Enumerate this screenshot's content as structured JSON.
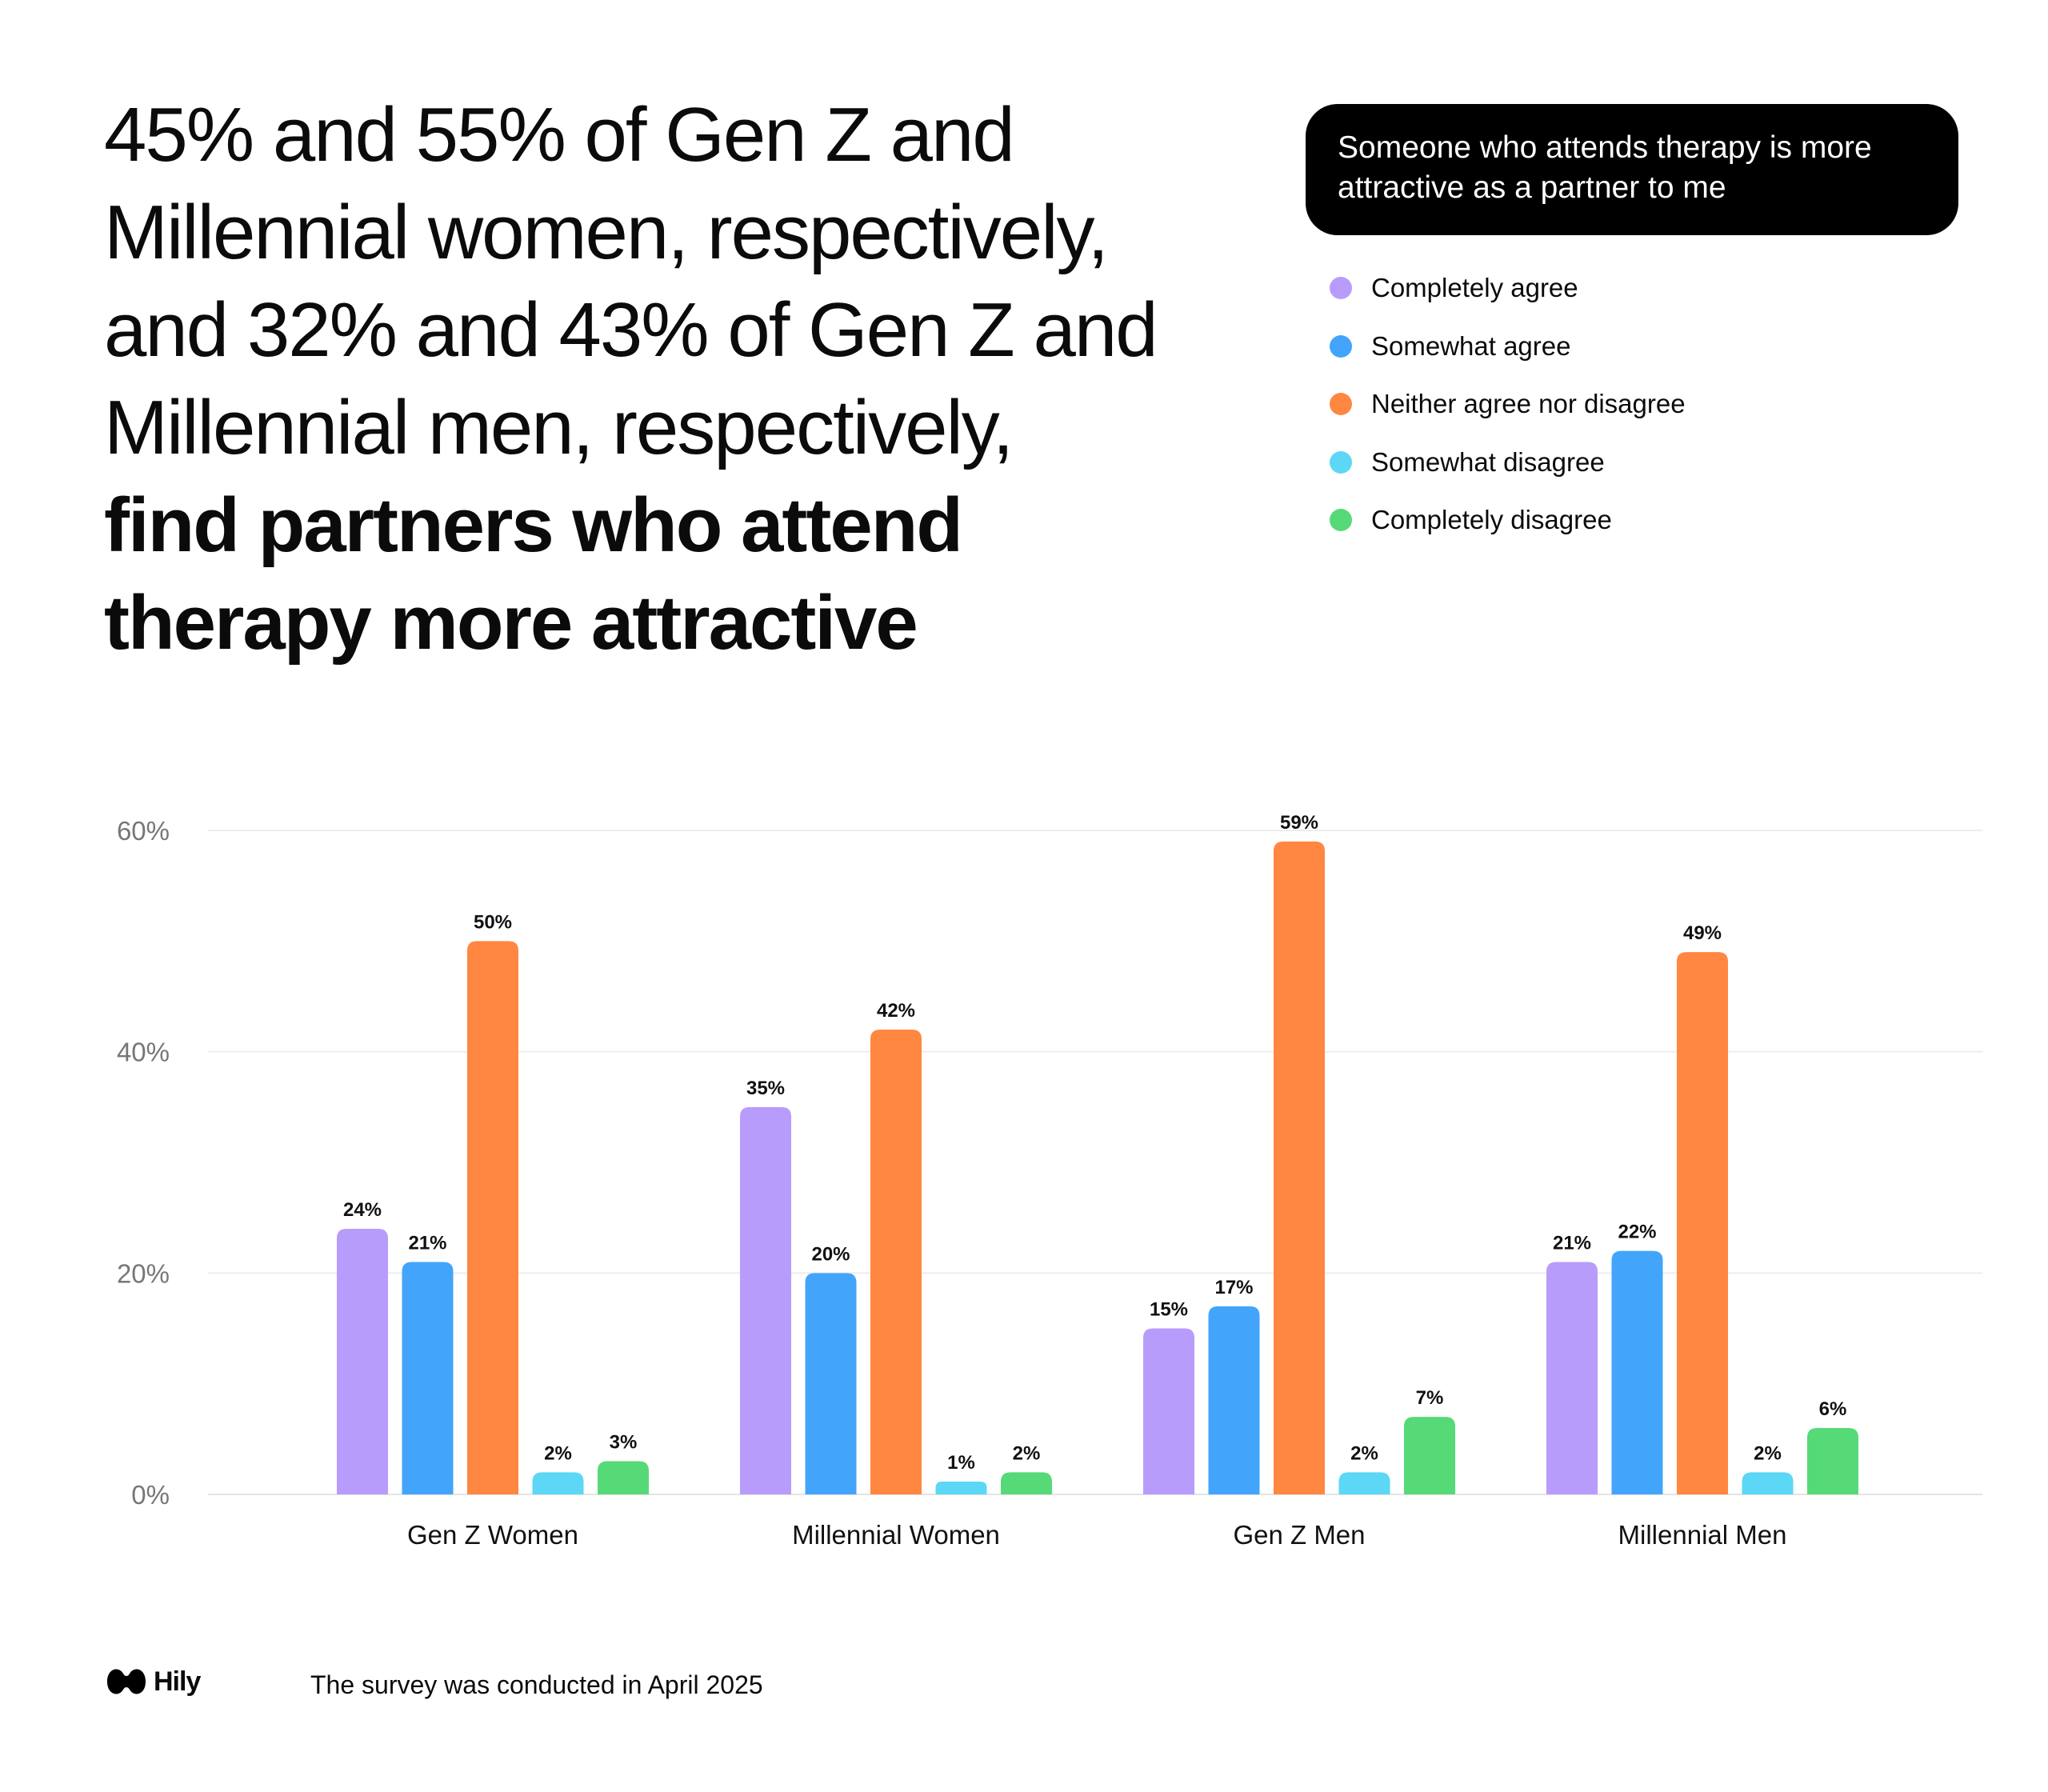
{
  "headline": {
    "regular": "45% and 55% of Gen Z and Millennial women, respectively, and 32% and 43% of Gen Z and Millennial men, respectively,",
    "bold": "find partners who attend therapy more attractive"
  },
  "chart_data": {
    "type": "bar",
    "title": "Someone who attends therapy is more attractive as a partner to me",
    "categories": [
      "Gen Z Women",
      "Millennial Women",
      "Gen Z Men",
      "Millennial Men"
    ],
    "series": [
      {
        "name": "Completely agree",
        "color": "#b89cfb",
        "values": [
          24,
          35,
          15,
          21
        ]
      },
      {
        "name": "Somewhat agree",
        "color": "#42a5fb",
        "values": [
          21,
          20,
          17,
          22
        ]
      },
      {
        "name": "Neither agree nor disagree",
        "color": "#ff8741",
        "values": [
          50,
          42,
          59,
          49
        ]
      },
      {
        "name": "Somewhat disagree",
        "color": "#5cd7f6",
        "values": [
          2,
          1,
          2,
          2
        ]
      },
      {
        "name": "Completely disagree",
        "color": "#56d977",
        "values": [
          3,
          2,
          7,
          6
        ]
      }
    ],
    "value_suffix": "%",
    "ylim": [
      0,
      60
    ],
    "yticks": [
      0,
      20,
      40,
      60
    ],
    "ytick_labels": [
      "0%",
      "20%",
      "40%",
      "60%"
    ],
    "grid": true,
    "legend": "top-right",
    "xlabel": "",
    "ylabel": ""
  },
  "footer": {
    "brand": "Hily",
    "note": "The survey was conducted in April 2025"
  }
}
